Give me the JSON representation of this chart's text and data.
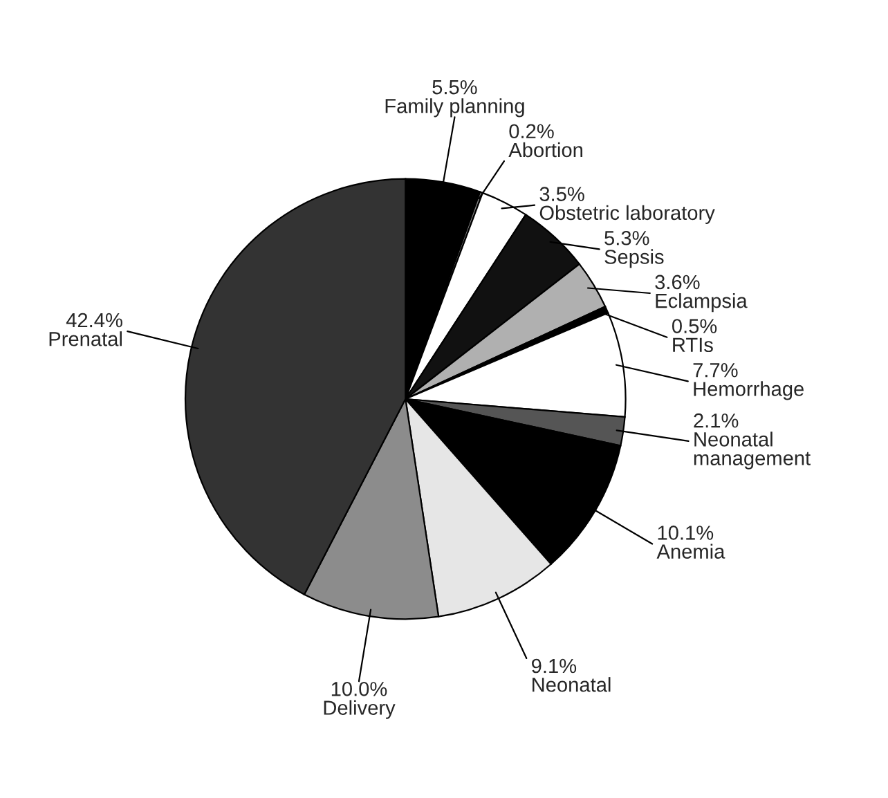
{
  "chart_data": {
    "type": "pie",
    "categories": [
      "Family planning",
      "Abortion",
      "Obstetric laboratory",
      "Sepsis",
      "Eclampsia",
      "RTIs",
      "Hemorrhage",
      "Neonatal management",
      "Anemia",
      "Neonatal",
      "Delivery",
      "Prenatal"
    ],
    "values": [
      5.5,
      0.2,
      3.5,
      5.3,
      3.6,
      0.5,
      7.7,
      2.1,
      10.1,
      9.1,
      10.0,
      42.4
    ],
    "value_labels": [
      "5.5%",
      "0.2%",
      "3.5%",
      "5.3%",
      "3.6%",
      "0.5%",
      "7.7%",
      "2.1%",
      "10.1%",
      "9.1%",
      "10.0%",
      "42.4%"
    ],
    "colors": [
      "#000000",
      "#808080",
      "#ffffff",
      "#111111",
      "#b0b0b0",
      "#000000",
      "#ffffff",
      "#555555",
      "#000000",
      "#e6e6e6",
      "#8c8c8c",
      "#333333"
    ],
    "legend": false
  }
}
